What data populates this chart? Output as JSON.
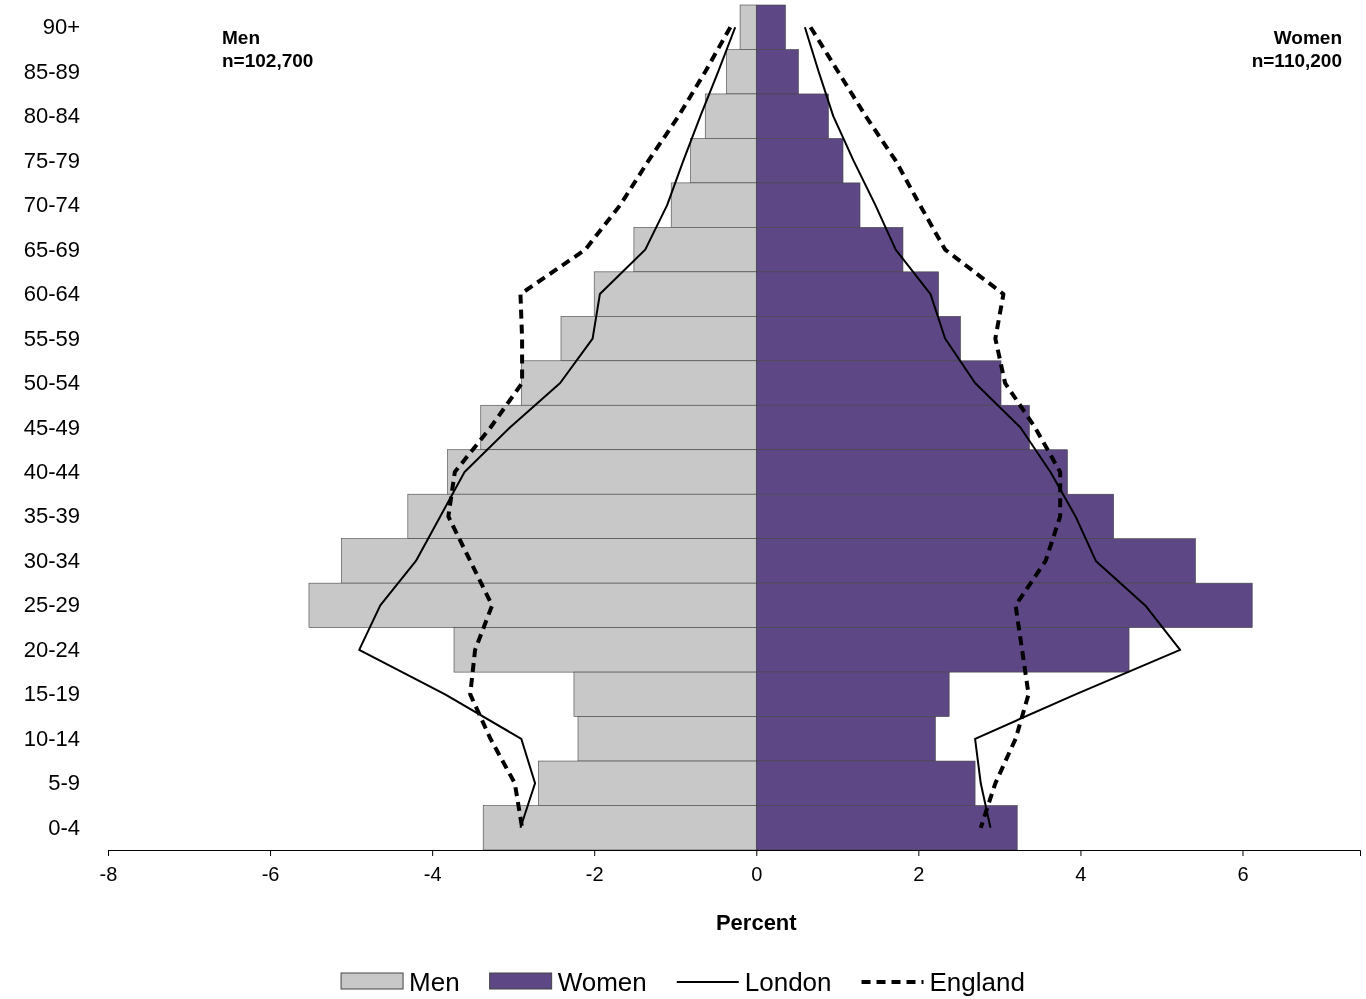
{
  "chart_data": {
    "type": "bar",
    "orientation": "horizontal",
    "xlabel": "Percent",
    "categories": [
      "90+",
      "85-89",
      "80-84",
      "75-79",
      "70-74",
      "65-69",
      "60-64",
      "55-59",
      "50-54",
      "45-49",
      "40-44",
      "35-39",
      "30-34",
      "25-29",
      "20-24",
      "15-19",
      "10-14",
      "5-9",
      "0-4"
    ],
    "stacked": true,
    "xlim": [
      -8,
      7.45
    ],
    "xticks": [
      -8,
      -6,
      -4,
      -2,
      0,
      2,
      4,
      6
    ],
    "grid": false,
    "legend": "bottom",
    "annotations": [
      "Men\nn=102,700",
      "Women\nn=110,200"
    ],
    "series": [
      {
        "name": "Men",
        "color": "#c8c8c8",
        "values": [
          -0.2,
          -0.37,
          -0.63,
          -0.81,
          -1.05,
          -1.51,
          -2.0,
          -2.41,
          -2.9,
          -3.4,
          -3.81,
          -4.3,
          -5.12,
          -5.52,
          -3.73,
          -2.25,
          -2.2,
          -2.69,
          -3.37
        ]
      },
      {
        "name": "Women",
        "color": "#5e4785",
        "values": [
          0.36,
          0.52,
          0.89,
          1.07,
          1.28,
          1.81,
          2.25,
          2.52,
          3.02,
          3.37,
          3.84,
          4.41,
          5.42,
          6.12,
          4.6,
          2.38,
          2.21,
          2.7,
          3.22
        ]
      },
      {
        "name": "London",
        "type": "line",
        "color": "#000000",
        "line_style": "solid",
        "values": [
          -0.26,
          -0.47,
          -0.69,
          -0.9,
          -1.1,
          -1.37,
          -1.93,
          -2.02,
          -2.42,
          -3.04,
          -3.6,
          -3.9,
          -4.2,
          -4.64,
          -4.9,
          -3.84,
          -2.9,
          -2.73,
          -2.91
        ]
      },
      {
        "name": "England",
        "type": "line",
        "color": "#000000",
        "line_style": "dashed",
        "values": [
          -0.32,
          -0.63,
          -0.96,
          -1.33,
          -1.68,
          -2.11,
          -2.91,
          -2.89,
          -2.89,
          -3.28,
          -3.72,
          -3.8,
          -3.53,
          -3.26,
          -3.47,
          -3.53,
          -3.28,
          -2.98,
          -2.89
        ]
      },
      {
        "type": "line",
        "color": "#000000",
        "line_style": "solid",
        "values": [
          0.6,
          0.77,
          0.95,
          1.2,
          1.47,
          1.72,
          2.15,
          2.33,
          2.7,
          3.26,
          3.63,
          3.94,
          4.19,
          4.8,
          5.23,
          3.94,
          2.7,
          2.77,
          2.89
        ]
      },
      {
        "type": "line",
        "color": "#000000",
        "line_style": "dashed",
        "values": [
          0.67,
          1.01,
          1.35,
          1.72,
          2.02,
          2.33,
          3.05,
          2.95,
          3.07,
          3.44,
          3.75,
          3.75,
          3.57,
          3.2,
          3.28,
          3.36,
          3.2,
          2.95,
          2.77
        ]
      }
    ]
  }
}
